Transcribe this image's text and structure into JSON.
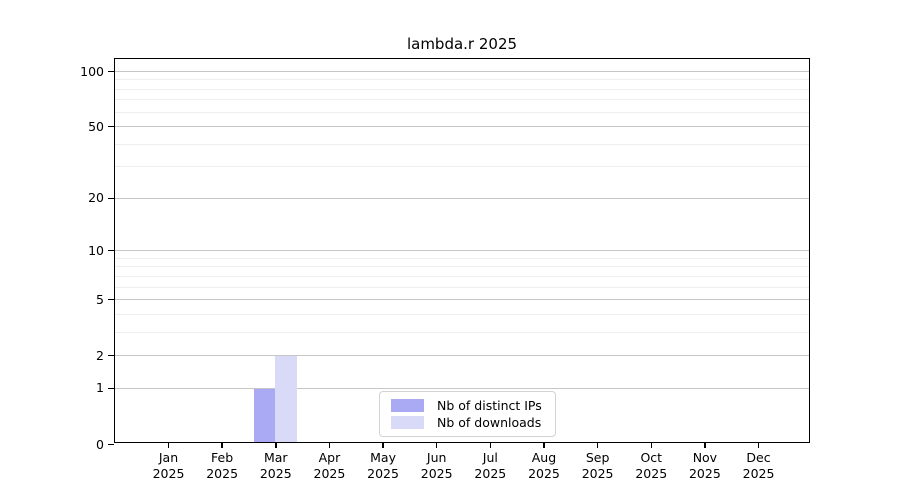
{
  "chart_data": {
    "type": "bar",
    "title": "lambda.r 2025",
    "categories": [
      "Jan",
      "Feb",
      "Mar",
      "Apr",
      "May",
      "Jun",
      "Jul",
      "Aug",
      "Sep",
      "Oct",
      "Nov",
      "Dec"
    ],
    "category_year": "2025",
    "series": [
      {
        "name": "Nb of distinct IPs",
        "color": "#a9a9f4",
        "values": [
          0,
          0,
          1,
          0,
          0,
          0,
          0,
          0,
          0,
          0,
          0,
          0
        ]
      },
      {
        "name": "Nb of downloads",
        "color": "#d9daf8",
        "values": [
          0,
          0,
          2,
          0,
          0,
          0,
          0,
          0,
          0,
          0,
          0,
          0
        ]
      }
    ],
    "yaxis": {
      "scale": "log1p",
      "major_ticks": [
        0,
        1,
        2,
        5,
        10,
        20,
        50,
        100
      ],
      "minor_ticks": [
        3,
        4,
        6,
        7,
        8,
        9,
        30,
        40,
        60,
        70,
        80,
        90
      ],
      "top_tick_value": 100,
      "ylim_bottom": 0
    },
    "xlabel": "",
    "ylabel": "",
    "grid": true,
    "legend_position": "lower center"
  },
  "styles": {
    "major_grid_color": "#c6c6c6",
    "minor_grid_color": "#eeeeee",
    "axis_color": "#000000",
    "background_color": "#ffffff",
    "bar_color_distinct_ips": "#a9a9f4",
    "bar_color_downloads": "#d9daf8"
  }
}
